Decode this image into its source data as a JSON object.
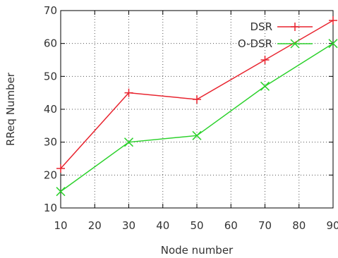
{
  "chart_data": {
    "type": "line",
    "xlabel": "Node number",
    "ylabel": "RReq Number",
    "xlim": [
      10,
      90
    ],
    "ylim": [
      10,
      70
    ],
    "x_ticks": [
      10,
      20,
      30,
      40,
      50,
      60,
      70,
      80,
      90
    ],
    "y_ticks": [
      10,
      20,
      30,
      40,
      50,
      60,
      70
    ],
    "grid": true,
    "legend_position": "top-right",
    "series": [
      {
        "name": "DSR",
        "color": "#e8232e",
        "marker": "plus",
        "x": [
          10,
          30,
          50,
          70,
          90
        ],
        "y": [
          22,
          45,
          43,
          55,
          67
        ]
      },
      {
        "name": "O-DSR",
        "color": "#2bd12b",
        "marker": "cross",
        "x": [
          10,
          30,
          50,
          70,
          90
        ],
        "y": [
          15,
          30,
          32,
          47,
          60
        ]
      }
    ]
  }
}
